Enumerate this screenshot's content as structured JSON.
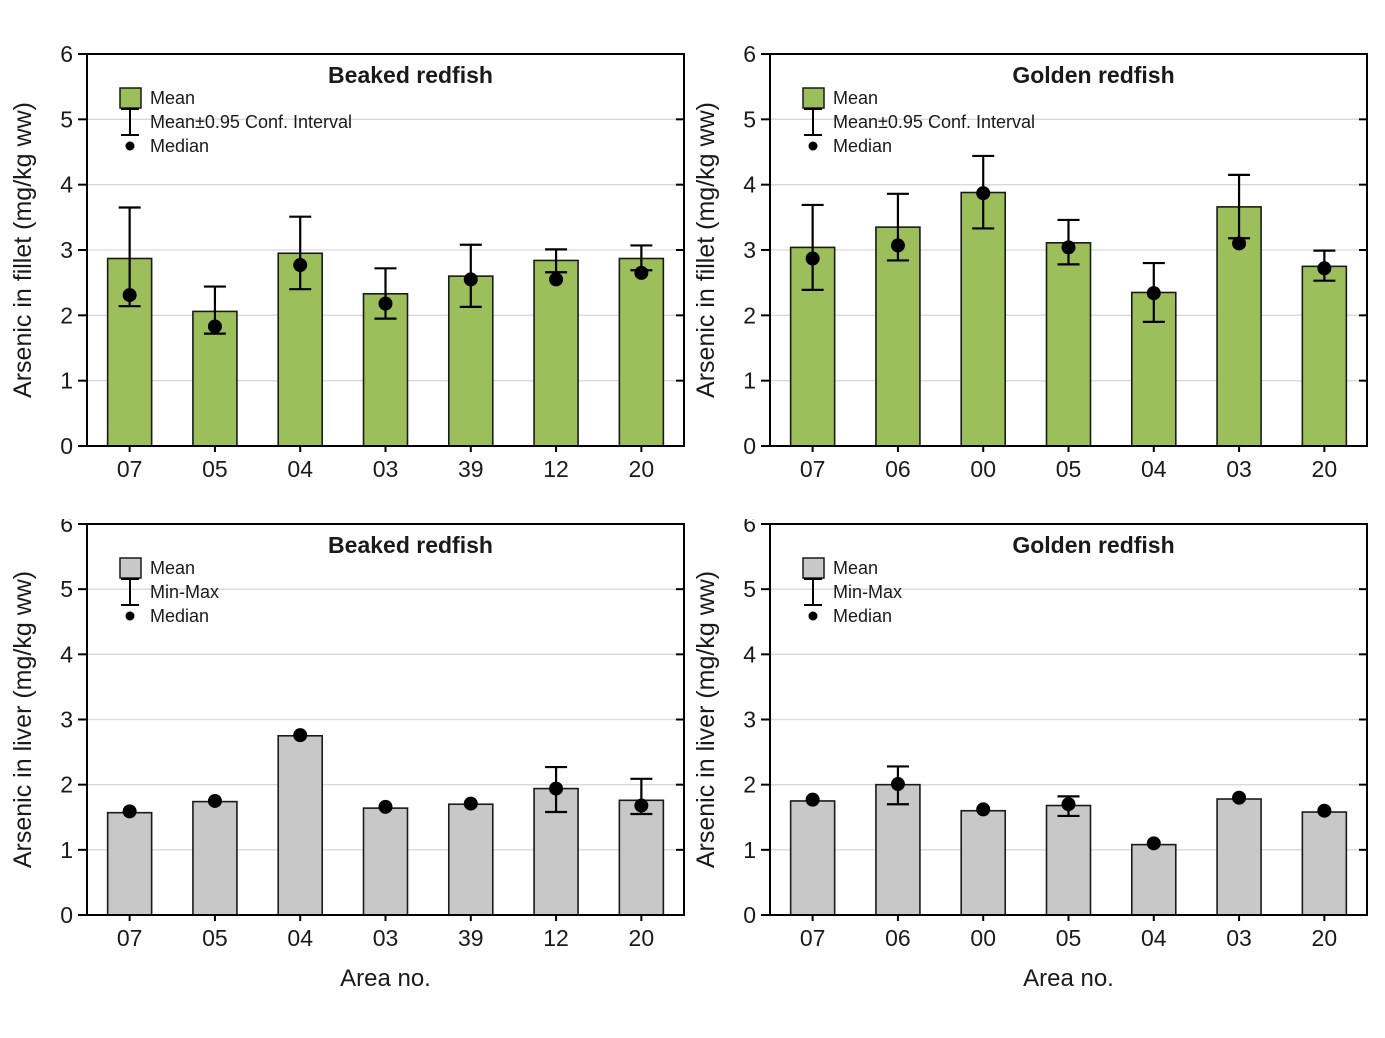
{
  "figure": {
    "background": "#ffffff",
    "frame_color": "#000000",
    "grid_color": "#d9d9d9",
    "text_color": "#1a1a1a",
    "xlabel": "Area no."
  },
  "chart_data": [
    {
      "id": "fillet-beaked",
      "type": "bar",
      "title": "Beaked redfish",
      "ylabel": "Arsenic in fillet (mg/kg ww)",
      "xlabel": "",
      "ylim": [
        0,
        6
      ],
      "yticks": [
        0,
        1,
        2,
        3,
        4,
        5,
        6
      ],
      "grid": "horizontal",
      "legend_position": "top-left-inside",
      "bar_color": "#9cbf5b",
      "legend": [
        {
          "icon": "swatch",
          "label": "Mean"
        },
        {
          "icon": "errorbar",
          "label": "Mean±0.95 Conf. Interval"
        },
        {
          "icon": "dot",
          "label": "Median"
        }
      ],
      "categories": [
        "07",
        "05",
        "04",
        "03",
        "39",
        "12",
        "20"
      ],
      "series": [
        {
          "name": "Mean",
          "values": [
            2.87,
            2.06,
            2.95,
            2.33,
            2.6,
            2.84,
            2.87
          ]
        },
        {
          "name": "CI low",
          "values": [
            2.14,
            1.72,
            2.4,
            1.95,
            2.13,
            2.66,
            2.69
          ]
        },
        {
          "name": "CI high",
          "values": [
            3.65,
            2.44,
            3.51,
            2.72,
            3.08,
            3.01,
            3.07
          ]
        },
        {
          "name": "Median",
          "values": [
            2.31,
            1.83,
            2.77,
            2.18,
            2.55,
            2.55,
            2.65
          ]
        }
      ]
    },
    {
      "id": "fillet-golden",
      "type": "bar",
      "title": "Golden redfish",
      "ylabel": "Arsenic in fillet (mg/kg ww)",
      "xlabel": "",
      "ylim": [
        0,
        6
      ],
      "yticks": [
        0,
        1,
        2,
        3,
        4,
        5,
        6
      ],
      "grid": "horizontal",
      "legend_position": "top-left-inside",
      "bar_color": "#9cbf5b",
      "legend": [
        {
          "icon": "swatch",
          "label": "Mean"
        },
        {
          "icon": "errorbar",
          "label": "Mean±0.95 Conf. Interval"
        },
        {
          "icon": "dot",
          "label": "Median"
        }
      ],
      "categories": [
        "07",
        "06",
        "00",
        "05",
        "04",
        "03",
        "20"
      ],
      "series": [
        {
          "name": "Mean",
          "values": [
            3.04,
            3.35,
            3.88,
            3.11,
            2.35,
            3.66,
            2.75
          ]
        },
        {
          "name": "CI low",
          "values": [
            2.39,
            2.84,
            3.33,
            2.78,
            1.9,
            3.18,
            2.53
          ]
        },
        {
          "name": "CI high",
          "values": [
            3.69,
            3.86,
            4.44,
            3.46,
            2.8,
            4.15,
            2.99
          ]
        },
        {
          "name": "Median",
          "values": [
            2.87,
            3.07,
            3.87,
            3.04,
            2.34,
            3.1,
            2.72
          ]
        }
      ]
    },
    {
      "id": "liver-beaked",
      "type": "bar",
      "title": "Beaked redfish",
      "ylabel": "Arsenic in liver (mg/kg ww)",
      "xlabel": "Area no.",
      "ylim": [
        0,
        6
      ],
      "yticks": [
        0,
        1,
        2,
        3,
        4,
        5,
        6
      ],
      "grid": "horizontal",
      "legend_position": "top-left-inside",
      "bar_color": "#c8c8c8",
      "legend": [
        {
          "icon": "swatch",
          "label": "Mean"
        },
        {
          "icon": "errorbar",
          "label": "Min-Max"
        },
        {
          "icon": "dot",
          "label": "Median"
        }
      ],
      "categories": [
        "07",
        "05",
        "04",
        "03",
        "39",
        "12",
        "20"
      ],
      "series": [
        {
          "name": "Mean",
          "values": [
            1.57,
            1.74,
            2.75,
            1.64,
            1.7,
            1.94,
            1.76
          ]
        },
        {
          "name": "Min",
          "values": [
            null,
            null,
            null,
            null,
            null,
            1.58,
            1.55
          ]
        },
        {
          "name": "Max",
          "values": [
            null,
            null,
            null,
            null,
            null,
            2.27,
            2.09
          ]
        },
        {
          "name": "Median",
          "values": [
            1.59,
            1.75,
            2.76,
            1.66,
            1.71,
            1.94,
            1.68
          ]
        }
      ]
    },
    {
      "id": "liver-golden",
      "type": "bar",
      "title": "Golden redfish",
      "ylabel": "Arsenic in liver (mg/kg ww)",
      "xlabel": "Area no.",
      "ylim": [
        0,
        6
      ],
      "yticks": [
        0,
        1,
        2,
        3,
        4,
        5,
        6
      ],
      "grid": "horizontal",
      "legend_position": "top-left-inside",
      "bar_color": "#c8c8c8",
      "legend": [
        {
          "icon": "swatch",
          "label": "Mean"
        },
        {
          "icon": "errorbar",
          "label": "Min-Max"
        },
        {
          "icon": "dot",
          "label": "Median"
        }
      ],
      "categories": [
        "07",
        "06",
        "00",
        "05",
        "04",
        "03",
        "20"
      ],
      "series": [
        {
          "name": "Mean",
          "values": [
            1.75,
            2.0,
            1.6,
            1.68,
            1.08,
            1.78,
            1.58
          ]
        },
        {
          "name": "Min",
          "values": [
            null,
            1.7,
            null,
            1.52,
            null,
            null,
            null
          ]
        },
        {
          "name": "Max",
          "values": [
            null,
            2.28,
            null,
            1.82,
            null,
            null,
            null
          ]
        },
        {
          "name": "Median",
          "values": [
            1.77,
            2.01,
            1.62,
            1.7,
            1.1,
            1.8,
            1.6
          ]
        }
      ]
    }
  ]
}
